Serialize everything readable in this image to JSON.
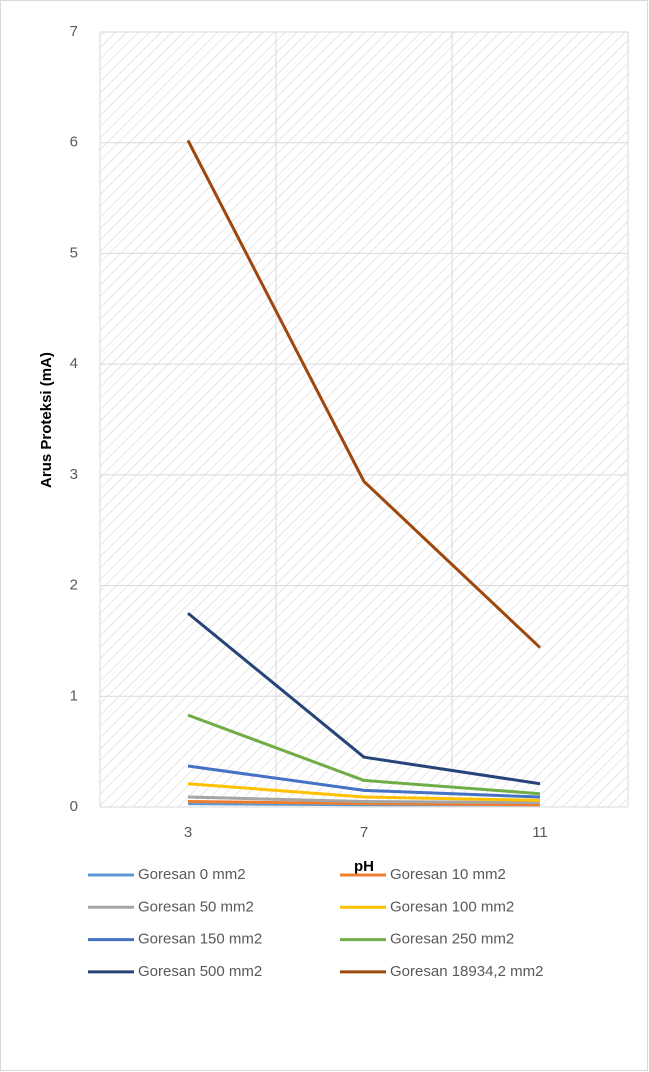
{
  "chart_data": {
    "type": "line",
    "y_label": "Arus Proteksi (mA)",
    "x_label": "pH",
    "categories": [
      "3",
      "7",
      "11"
    ],
    "series": [
      {
        "name": "Goresan 0 mm2",
        "color": "#5b9bd5",
        "values": [
          0.03,
          0.02,
          0.02
        ]
      },
      {
        "name": "Goresan 10 mm2",
        "color": "#ed7d31",
        "values": [
          0.05,
          0.03,
          0.02
        ]
      },
      {
        "name": "Goresan 50 mm2",
        "color": "#a5a5a5",
        "values": [
          0.09,
          0.05,
          0.04
        ]
      },
      {
        "name": "Goresan 100 mm2",
        "color": "#ffc000",
        "values": [
          0.21,
          0.09,
          0.06
        ]
      },
      {
        "name": "Goresan 150 mm2",
        "color": "#4472c4",
        "values": [
          0.37,
          0.15,
          0.09
        ]
      },
      {
        "name": "Goresan 250 mm2",
        "color": "#70ad47",
        "values": [
          0.83,
          0.24,
          0.12
        ]
      },
      {
        "name": "Goresan 500 mm2",
        "color": "#264478",
        "values": [
          1.75,
          0.45,
          0.21
        ]
      },
      {
        "name": "Goresan 18934,2 mm2",
        "color": "#9e480e",
        "values": [
          6.02,
          2.94,
          1.44
        ]
      }
    ],
    "ylim": [
      0,
      7
    ],
    "yticks": [
      0,
      1,
      2,
      3,
      4,
      5,
      6,
      7
    ],
    "grid": true
  }
}
